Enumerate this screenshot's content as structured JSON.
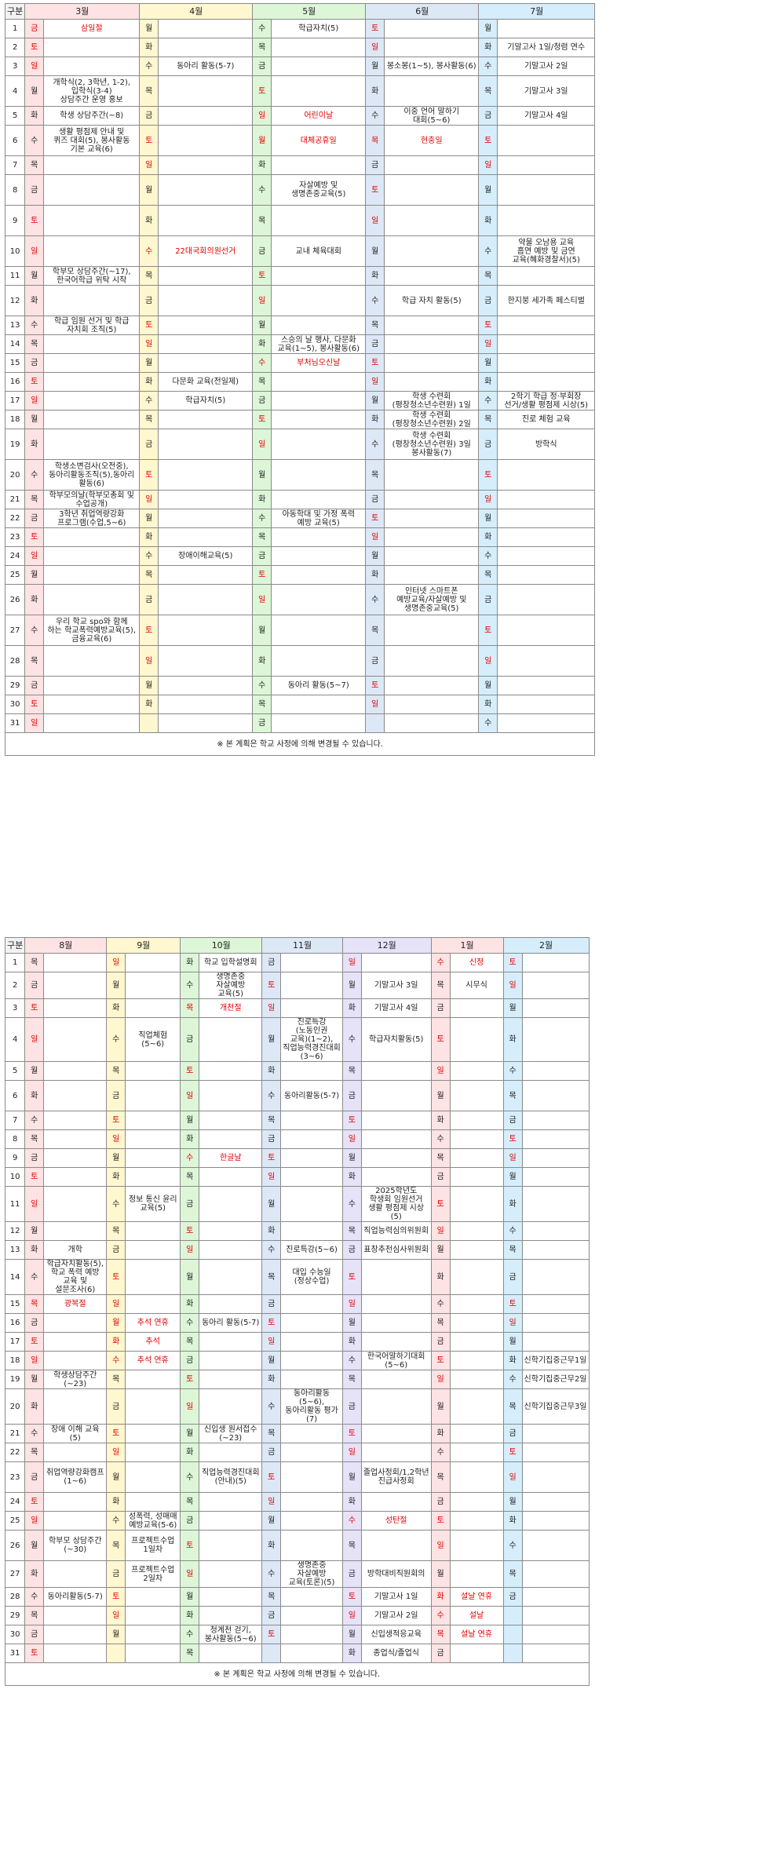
{
  "note": "※ 본 계획은 학교 사정에 의해 변경될 수 있습니다.",
  "row_header": "구분",
  "days": [
    "1",
    "2",
    "3",
    "4",
    "5",
    "6",
    "7",
    "8",
    "9",
    "10",
    "11",
    "12",
    "13",
    "14",
    "15",
    "16",
    "17",
    "18",
    "19",
    "20",
    "21",
    "22",
    "23",
    "24",
    "25",
    "26",
    "27",
    "28",
    "29",
    "30",
    "31"
  ],
  "colors": {
    "pink": "#fde3e3",
    "yellow": "#fff7cf",
    "green": "#ddf6d8",
    "blue": "#dde8f6",
    "purple": "#e6e2f8",
    "sky": "#d6eefb",
    "red": "#e00000"
  },
  "tables": [
    {
      "months": [
        {
          "name": "3월",
          "color": "pink",
          "w": [
            "금",
            "토",
            "일",
            "월",
            "화",
            "수",
            "목",
            "금",
            "토",
            "일",
            "월",
            "화",
            "수",
            "목",
            "금",
            "토",
            "일",
            "월",
            "화",
            "수",
            "목",
            "금",
            "토",
            "일",
            "월",
            "화",
            "수",
            "목",
            "금",
            "토",
            "일"
          ],
          "e": [
            "삼일절",
            "",
            "",
            "개학식(2, 3학년, 1-2),\n입학식(3-4)\n상담주간 운영 홍보",
            "학생 상담주간(~8)",
            "생활 평점제 안내 및\n퀴즈 대회(5), 봉사활동\n기본 교육(6)",
            "",
            "",
            "",
            "",
            "학부모 상담주간(~17),\n한국어학급 위탁 시작",
            "",
            "학급 임원 선거 및 학급\n자치회 조직(5)",
            "",
            "",
            "",
            "",
            "",
            "",
            "학생소변검사(오전중),\n동아리활동조직(5),동아리\n활동(6)",
            "학부모의날(학부모총회 및\n수업공개)",
            "3학년 취업역량강화\n프로그램(수업,5~6)",
            "",
            "",
            "",
            "",
            "우리 학교 spo와 함께\n하는 학교폭력예방교육(5),\n금융교육(6)",
            "",
            "",
            "",
            ""
          ],
          "h": [
            0
          ]
        },
        {
          "name": "4월",
          "color": "yellow",
          "w": [
            "월",
            "화",
            "수",
            "목",
            "금",
            "토",
            "일",
            "월",
            "화",
            "수",
            "목",
            "금",
            "토",
            "일",
            "월",
            "화",
            "수",
            "목",
            "금",
            "토",
            "일",
            "월",
            "화",
            "수",
            "목",
            "금",
            "토",
            "일",
            "월",
            "화",
            ""
          ],
          "e": [
            "",
            "",
            "동아리 활동(5-7)",
            "",
            "",
            "",
            "",
            "",
            "",
            "22대국회의원선거",
            "",
            "",
            "",
            "",
            "",
            "다문화 교육(전일제)",
            "학급자치(5)",
            "",
            "",
            "",
            "",
            "",
            "",
            "장애이해교육(5)",
            "",
            "",
            "",
            "",
            "",
            "",
            ""
          ],
          "h": [
            9
          ]
        },
        {
          "name": "5월",
          "color": "green",
          "w": [
            "수",
            "목",
            "금",
            "토",
            "일",
            "월",
            "화",
            "수",
            "목",
            "금",
            "토",
            "일",
            "월",
            "화",
            "수",
            "목",
            "금",
            "토",
            "일",
            "월",
            "화",
            "수",
            "목",
            "금",
            "토",
            "일",
            "월",
            "화",
            "수",
            "목",
            "금"
          ],
          "e": [
            "학급자치(5)",
            "",
            "",
            "",
            "어린이날",
            "대체공휴일",
            "",
            "자살예방 및\n생명존중교육(5)",
            "",
            "교내 체육대회",
            "",
            "",
            "",
            "스승의 날 행사, 다문화\n교육(1~5), 봉사활동(6)",
            "부처님오신날",
            "",
            "",
            "",
            "",
            "",
            "",
            "아동학대 및 가정 폭력\n예방 교육(5)",
            "",
            "",
            "",
            "",
            "",
            "",
            "동아리 활동(5~7)",
            "",
            ""
          ],
          "h": [
            4,
            5,
            14
          ]
        },
        {
          "name": "6월",
          "color": "blue",
          "w": [
            "토",
            "일",
            "월",
            "화",
            "수",
            "목",
            "금",
            "토",
            "일",
            "월",
            "화",
            "수",
            "목",
            "금",
            "토",
            "일",
            "월",
            "화",
            "수",
            "목",
            "금",
            "토",
            "일",
            "월",
            "화",
            "수",
            "목",
            "금",
            "토",
            "일",
            ""
          ],
          "e": [
            "",
            "",
            "봉소봉(1~5), 봉사활동(6)",
            "",
            "이중 언어 말하기\n대회(5~6)",
            "현충일",
            "",
            "",
            "",
            "",
            "",
            "학급 자치 활동(5)",
            "",
            "",
            "",
            "",
            "학생 수련회\n(평창청소년수련원) 1일",
            "학생 수련회\n(평창청소년수련원) 2일",
            "학생 수련회\n(평창청소년수련원) 3일\n봉사활동(7)",
            "",
            "",
            "",
            "",
            "",
            "",
            "인터넷 스마트폰\n예방교육/자살예방 및\n생명존중교육(5)",
            "",
            "",
            "",
            "",
            ""
          ],
          "h": [
            5
          ]
        },
        {
          "name": "7월",
          "color": "sky",
          "w": [
            "월",
            "화",
            "수",
            "목",
            "금",
            "토",
            "일",
            "월",
            "화",
            "수",
            "목",
            "금",
            "토",
            "일",
            "월",
            "화",
            "수",
            "목",
            "금",
            "토",
            "일",
            "월",
            "화",
            "수",
            "목",
            "금",
            "토",
            "일",
            "월",
            "화",
            "수"
          ],
          "e": [
            "",
            "기말고사 1일/청렴 연수",
            "기말고사 2일",
            "기말고사 3일",
            "기말고사 4일",
            "",
            "",
            "",
            "",
            "약물 오남용 교육\n흡연 예방 및 금연\n교육(혜화경찰서)(5)",
            "",
            "한지붕 세가족 페스티벌",
            "",
            "",
            "",
            "",
            "2학기 학급 정·부회장\n선거/생활 평점제 시상(5)",
            "진로 체험 교육",
            "방학식",
            "",
            "",
            "",
            "",
            "",
            "",
            "",
            "",
            "",
            "",
            "",
            ""
          ],
          "h": []
        }
      ]
    },
    {
      "months": [
        {
          "name": "8월",
          "color": "pink",
          "w": [
            "목",
            "금",
            "토",
            "일",
            "월",
            "화",
            "수",
            "목",
            "금",
            "토",
            "일",
            "월",
            "화",
            "수",
            "목",
            "금",
            "토",
            "일",
            "월",
            "화",
            "수",
            "목",
            "금",
            "토",
            "일",
            "월",
            "화",
            "수",
            "목",
            "금",
            "토"
          ],
          "e": [
            "",
            "",
            "",
            "",
            "",
            "",
            "",
            "",
            "",
            "",
            "",
            "",
            "개학",
            "학급자치활동(5),\n학교 폭력 예방\n교육 및\n설문조사(6)",
            "광복절",
            "",
            "",
            "",
            "학생상담주간(~23)",
            "",
            "장애 이해 교육(5)",
            "",
            "취업역량강화캠프\n(1~6)",
            "",
            "",
            "학부모 상담주간\n(~30)",
            "",
            "동아리활동(5-7)",
            "",
            "",
            ""
          ],
          "h": [
            14
          ]
        },
        {
          "name": "9월",
          "color": "yellow",
          "w": [
            "일",
            "월",
            "화",
            "수",
            "목",
            "금",
            "토",
            "일",
            "월",
            "화",
            "수",
            "목",
            "금",
            "토",
            "일",
            "월",
            "화",
            "수",
            "목",
            "금",
            "토",
            "일",
            "월",
            "화",
            "수",
            "목",
            "금",
            "토",
            "일",
            "월",
            ""
          ],
          "e": [
            "",
            "",
            "",
            "직업체험(5~6)",
            "",
            "",
            "",
            "",
            "",
            "",
            "정보 통신 윤리\n교육(5)",
            "",
            "",
            "",
            "",
            "추석 연휴",
            "추석",
            "추석 연휴",
            "",
            "",
            "",
            "",
            "",
            "",
            "성폭력, 성매매\n예방교육(5-6)",
            "프로젝트수업 1일차",
            "프로젝트수업 2일차",
            "",
            "",
            "",
            ""
          ],
          "h": [
            15,
            16,
            17
          ]
        },
        {
          "name": "10월",
          "color": "green",
          "w": [
            "화",
            "수",
            "목",
            "금",
            "토",
            "일",
            "월",
            "화",
            "수",
            "목",
            "금",
            "토",
            "일",
            "월",
            "화",
            "수",
            "목",
            "금",
            "토",
            "일",
            "월",
            "화",
            "수",
            "목",
            "금",
            "토",
            "일",
            "월",
            "화",
            "수",
            "목"
          ],
          "e": [
            "학교 입학설명회",
            "생명존중 자살예방\n교육(5)",
            "개천절",
            "",
            "",
            "",
            "",
            "",
            "한글날",
            "",
            "",
            "",
            "",
            "",
            "",
            "동아리 활동(5-7)",
            "",
            "",
            "",
            "",
            "신입생 원서접수\n(~23)",
            "",
            "직업능력경진대회\n(안내)(5)",
            "",
            "",
            "",
            "",
            "",
            "",
            "청계천 걷기,\n봉사활동(5~6)",
            ""
          ],
          "h": [
            2,
            8
          ]
        },
        {
          "name": "11월",
          "color": "blue",
          "w": [
            "금",
            "토",
            "일",
            "월",
            "화",
            "수",
            "목",
            "금",
            "토",
            "일",
            "월",
            "화",
            "수",
            "목",
            "금",
            "토",
            "일",
            "월",
            "화",
            "수",
            "목",
            "금",
            "토",
            "일",
            "월",
            "화",
            "수",
            "목",
            "금",
            "토",
            ""
          ],
          "e": [
            "",
            "",
            "",
            "진로특강(노동인권\n교육)(1~2),\n직업능력경진대회\n(3~6)",
            "",
            "동아리활동(5-7)",
            "",
            "",
            "",
            "",
            "",
            "",
            "진로특강(5~6)",
            "대입 수능일\n(정상수업)",
            "",
            "",
            "",
            "",
            "",
            "동아리활동(5~6),\n동아리활동 평가(7)",
            "",
            "",
            "",
            "",
            "",
            "",
            "생명존중 자살예방\n교육(토론)(5)",
            "",
            "",
            "",
            ""
          ],
          "h": []
        },
        {
          "name": "12월",
          "color": "purple",
          "w": [
            "일",
            "월",
            "화",
            "수",
            "목",
            "금",
            "토",
            "일",
            "월",
            "화",
            "수",
            "목",
            "금",
            "토",
            "일",
            "월",
            "화",
            "수",
            "목",
            "금",
            "토",
            "일",
            "월",
            "화",
            "수",
            "목",
            "금",
            "토",
            "일",
            "월",
            "화"
          ],
          "e": [
            "",
            "기말고사 3일",
            "기말고사 4일",
            "학급자치활동(5)",
            "",
            "",
            "",
            "",
            "",
            "",
            "2025학년도\n학생회 임원선거\n생활 평점제 시상(5)",
            "직업능력심의위원회",
            "표창추천심사위원회",
            "",
            "",
            "",
            "",
            "한국어말하기대회\n(5~6)",
            "",
            "",
            "",
            "",
            "졸업사정회/1,2학년\n진급사정회",
            "",
            "성탄절",
            "",
            "방학대비직원회의",
            "기말고사 1일",
            "기말고사 2일",
            "신입생적응교육",
            "종업식/졸업식"
          ],
          "h": [
            24
          ]
        },
        {
          "name": "1월",
          "color": "pink",
          "w": [
            "수",
            "목",
            "금",
            "토",
            "일",
            "월",
            "화",
            "수",
            "목",
            "금",
            "토",
            "일",
            "월",
            "화",
            "수",
            "목",
            "금",
            "토",
            "일",
            "월",
            "화",
            "수",
            "목",
            "금",
            "토",
            "일",
            "월",
            "화",
            "수",
            "목",
            "금"
          ],
          "e": [
            "신정",
            "시무식",
            "",
            "",
            "",
            "",
            "",
            "",
            "",
            "",
            "",
            "",
            "",
            "",
            "",
            "",
            "",
            "",
            "",
            "",
            "",
            "",
            "",
            "",
            "",
            "",
            "",
            "설날 연휴",
            "설날",
            "설날 연휴",
            ""
          ],
          "h": [
            0,
            27,
            28,
            29
          ]
        },
        {
          "name": "2월",
          "color": "sky",
          "w": [
            "토",
            "일",
            "월",
            "화",
            "수",
            "목",
            "금",
            "토",
            "일",
            "월",
            "화",
            "수",
            "목",
            "금",
            "토",
            "일",
            "월",
            "화",
            "수",
            "목",
            "금",
            "토",
            "일",
            "월",
            "화",
            "수",
            "목",
            "금",
            "",
            "",
            ""
          ],
          "e": [
            "",
            "",
            "",
            "",
            "",
            "",
            "",
            "",
            "",
            "",
            "",
            "",
            "",
            "",
            "",
            "",
            "",
            "신학기집중근무1일",
            "신학기집중근무2일",
            "신학기집중근무3일",
            "",
            "",
            "",
            "",
            "",
            "",
            "",
            "",
            "",
            "",
            ""
          ],
          "h": []
        }
      ]
    }
  ]
}
